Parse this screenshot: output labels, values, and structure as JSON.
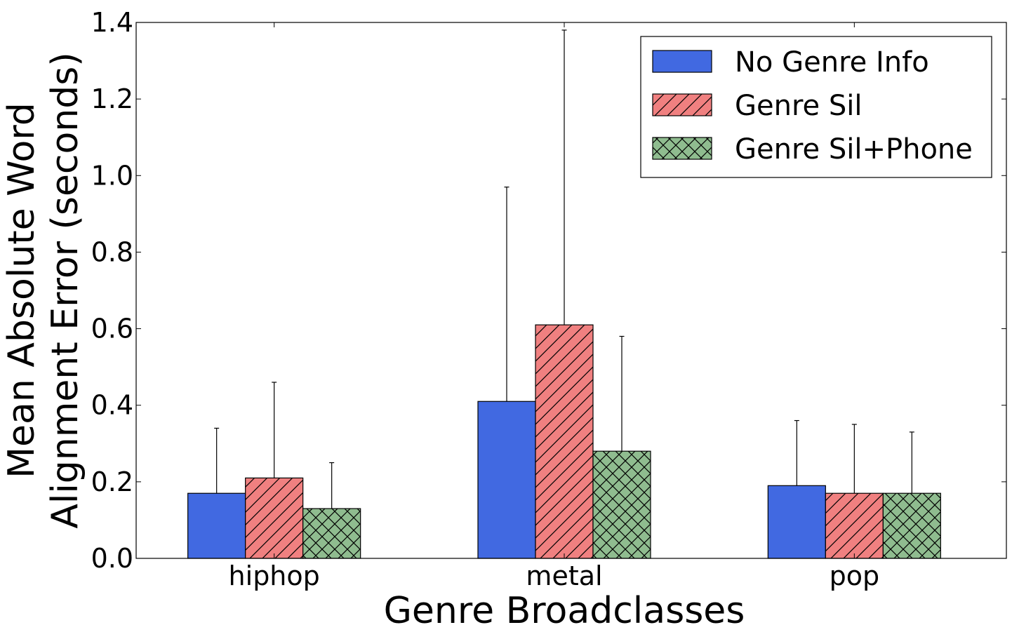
{
  "chart_data": {
    "type": "bar",
    "title": "",
    "xlabel": "Genre Broadclasses",
    "ylabel_lines": [
      "Mean Absolute Word",
      "Alignment Error (seconds)"
    ],
    "categories": [
      "hiphop",
      "metal",
      "pop"
    ],
    "ylim": [
      0,
      1.4
    ],
    "yticks": [
      0.0,
      0.2,
      0.4,
      0.6,
      0.8,
      1.0,
      1.2,
      1.4
    ],
    "ytick_labels": [
      "0.0",
      "0.2",
      "0.4",
      "0.6",
      "0.8",
      "1.0",
      "1.2",
      "1.4"
    ],
    "grid": false,
    "legend_position": "top-right",
    "series": [
      {
        "name": "No Genre Info",
        "color": "#4169e1",
        "hatch": "none",
        "values": [
          0.17,
          0.41,
          0.19
        ],
        "error_top": [
          0.34,
          0.97,
          0.36
        ]
      },
      {
        "name": "Genre Sil",
        "color": "#f08080",
        "hatch": "diagonal",
        "values": [
          0.21,
          0.61,
          0.17
        ],
        "error_top": [
          0.46,
          1.38,
          0.35
        ]
      },
      {
        "name": "Genre Sil+Phone",
        "color": "#8fbc8f",
        "hatch": "cross",
        "values": [
          0.13,
          0.28,
          0.17
        ],
        "error_top": [
          0.25,
          0.58,
          0.33
        ]
      }
    ]
  }
}
